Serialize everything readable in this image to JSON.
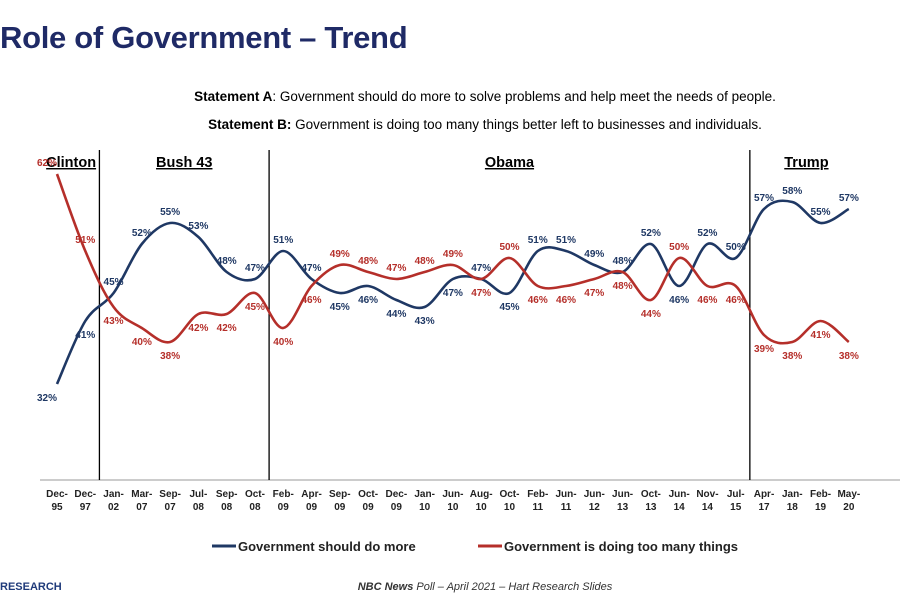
{
  "page": {
    "title": "Role of Government – Trend",
    "statement_a_label": "Statement A",
    "statement_a_text": ": Government should do more to solve problems and help meet the needs of people.",
    "statement_b_label": "Statement B:",
    "statement_b_text": " Government is doing too many things better left to businesses and individuals.",
    "footer_source": "NBC News",
    "footer_text": " Poll – April 2021 – Hart Research Slides",
    "logo_text": "RESEARCH"
  },
  "chart_data": {
    "type": "line",
    "title": "Role of Government – Trend",
    "categories": [
      [
        "Dec-",
        "95"
      ],
      [
        "Dec-",
        "97"
      ],
      [
        "Jan-",
        "02"
      ],
      [
        "Mar-",
        "07"
      ],
      [
        "Sep-",
        "07"
      ],
      [
        "Jul-",
        "08"
      ],
      [
        "Sep-",
        "08"
      ],
      [
        "Oct-",
        "08"
      ],
      [
        "Feb-",
        "09"
      ],
      [
        "Apr-",
        "09"
      ],
      [
        "Sep-",
        "09"
      ],
      [
        "Oct-",
        "09"
      ],
      [
        "Dec-",
        "09"
      ],
      [
        "Jan-",
        "10"
      ],
      [
        "Jun-",
        "10"
      ],
      [
        "Aug-",
        "10"
      ],
      [
        "Oct-",
        "10"
      ],
      [
        "Feb-",
        "11"
      ],
      [
        "Jun-",
        "11"
      ],
      [
        "Jun-",
        "12"
      ],
      [
        "Jun-",
        "13"
      ],
      [
        "Oct-",
        "13"
      ],
      [
        "Jun-",
        "14"
      ],
      [
        "Nov-",
        "14"
      ],
      [
        "Jul-",
        "15"
      ],
      [
        "Apr-",
        "17"
      ],
      [
        "Jan-",
        "18"
      ],
      [
        "Feb-",
        "19"
      ],
      [
        "May-",
        "20"
      ]
    ],
    "series": [
      {
        "name": "Government should do more",
        "color": "#1f3864",
        "values": [
          32,
          41,
          45,
          52,
          55,
          53,
          48,
          47,
          51,
          47,
          45,
          46,
          44,
          43,
          47,
          47,
          45,
          51,
          51,
          49,
          48,
          52,
          46,
          52,
          50,
          57,
          58,
          55,
          57
        ],
        "labels": [
          "32%",
          "41%",
          "45%",
          "52%",
          "55%",
          "53%",
          "48%",
          "47%",
          "51%",
          "47%",
          "45%",
          "46%",
          "44%",
          "43%",
          "47%",
          "47%",
          "45%",
          "51%",
          "51%",
          "49%",
          "48%",
          "52%",
          "46%",
          "52%",
          "50%",
          "57%",
          "58%",
          "55%",
          "57%"
        ]
      },
      {
        "name": "Government is doing too many things",
        "color": "#b52f2a",
        "values": [
          62,
          51,
          43,
          40,
          38,
          42,
          42,
          45,
          40,
          46,
          49,
          48,
          47,
          48,
          49,
          47,
          50,
          46,
          46,
          47,
          48,
          44,
          50,
          46,
          46,
          39,
          38,
          41,
          38
        ],
        "labels": [
          "62%",
          "51%",
          "43%",
          "40%",
          "38%",
          "42%",
          "42%",
          "45%",
          "40%",
          "46%",
          "49%",
          "48%",
          "47%",
          "48%",
          "49%",
          "47%",
          "50%",
          "46%",
          "46%",
          "47%",
          "48%",
          "44%",
          "50%",
          "46%",
          "46%",
          "39%",
          "38%",
          "41%",
          "38%"
        ]
      }
    ],
    "eras": [
      {
        "name": "Clinton",
        "from": 0,
        "to": 1
      },
      {
        "name": "Bush 43",
        "from": 2,
        "to": 7
      },
      {
        "name": "Obama",
        "from": 8,
        "to": 24
      },
      {
        "name": "Trump",
        "from": 25,
        "to": 28
      }
    ],
    "legend_position": "bottom",
    "grid": false
  }
}
